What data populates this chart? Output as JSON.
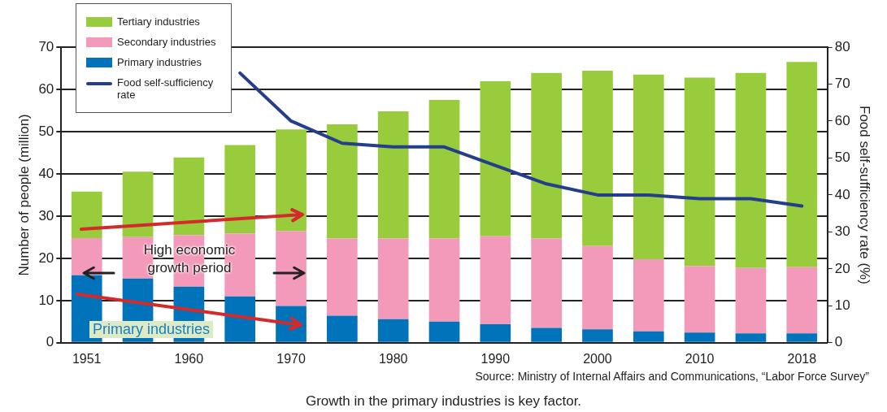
{
  "chart_data": {
    "type": "bar",
    "stacked": true,
    "categories": [
      "1951",
      null,
      "1960",
      null,
      "1970",
      null,
      "1980",
      null,
      "1990",
      null,
      "2000",
      null,
      "2010",
      null,
      "2018"
    ],
    "series": [
      {
        "name": "Primary industries",
        "color": "#0073bb",
        "values": [
          16,
          15.2,
          13.3,
          11,
          8.7,
          6.4,
          5.6,
          5.0,
          4.4,
          3.5,
          3.2,
          2.7,
          2.4,
          2.2,
          2.2
        ]
      },
      {
        "name": "Secondary industries",
        "color": "#f39aba",
        "values": [
          8.8,
          9.8,
          12.2,
          14.9,
          17.7,
          18.3,
          19.1,
          19.7,
          20.8,
          21.2,
          19.7,
          17.1,
          15.8,
          15.5,
          15.7
        ]
      },
      {
        "name": "Tertiary industries",
        "color": "#99cc3d",
        "values": [
          11,
          15.5,
          18.4,
          20.9,
          24.1,
          27.0,
          30.1,
          32.8,
          36.7,
          39.2,
          41.5,
          43.7,
          44.6,
          46.2,
          48.6
        ]
      },
      {
        "name": "Food self-sufficiency rate",
        "type": "line",
        "axis": "y2",
        "color": "#233e8b",
        "values": [
          null,
          null,
          null,
          73,
          60,
          54,
          53,
          53,
          48,
          43,
          40,
          40,
          39,
          39,
          37
        ]
      }
    ],
    "ylabel": "Number of people (million)",
    "y2label": "Food self-sufficiency rate (%)",
    "ylim": [
      0,
      70
    ],
    "yticks": [
      0,
      10,
      20,
      30,
      40,
      50,
      60,
      70
    ],
    "y2lim": [
      0,
      80
    ],
    "y2ticks": [
      0,
      10,
      20,
      30,
      40,
      50,
      60,
      70,
      80
    ],
    "grid": "y",
    "legend": "top left",
    "marker": "none",
    "annotations": [
      "High economic growth period",
      "Primary industries",
      "Source: Ministry of Internal Affairs and Communications, “Labor Force Survey”",
      "Growth in the primary industries is key factor."
    ]
  }
}
